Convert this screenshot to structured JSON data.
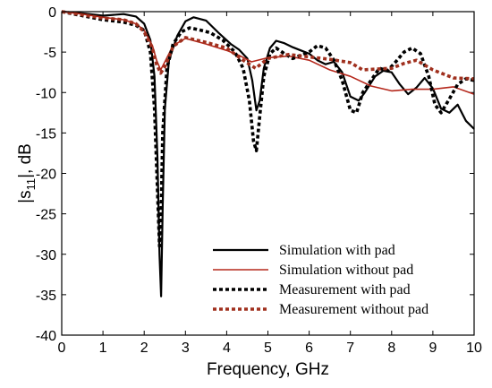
{
  "chart_data": {
    "type": "line",
    "xlabel": "Frequency, GHz",
    "ylabel_main": "|s",
    "ylabel_sub": "11",
    "ylabel_tail": "|, dB",
    "xlim": [
      0,
      10
    ],
    "ylim": [
      -40,
      0
    ],
    "xticks": [
      0,
      1,
      2,
      3,
      4,
      5,
      6,
      7,
      8,
      9,
      10
    ],
    "yticks": [
      0,
      -5,
      -10,
      -15,
      -20,
      -25,
      -30,
      -35,
      -40
    ],
    "grid": false,
    "legend_position": "bottom-right",
    "series": [
      {
        "name": "Simulation with pad",
        "color": "#000000",
        "style": "solid",
        "x": [
          0,
          0.5,
          1.0,
          1.5,
          1.8,
          2.0,
          2.15,
          2.25,
          2.32,
          2.37,
          2.41,
          2.45,
          2.5,
          2.6,
          2.8,
          3.0,
          3.2,
          3.5,
          3.8,
          4.1,
          4.3,
          4.5,
          4.62,
          4.72,
          4.8,
          4.9,
          5.05,
          5.2,
          5.4,
          5.6,
          5.8,
          6.0,
          6.2,
          6.4,
          6.6,
          6.8,
          7.0,
          7.2,
          7.35,
          7.6,
          7.8,
          8.0,
          8.2,
          8.4,
          8.6,
          8.8,
          9.0,
          9.2,
          9.4,
          9.6,
          9.8,
          10.0
        ],
        "y": [
          0,
          -0.2,
          -0.5,
          -0.3,
          -0.6,
          -1.5,
          -3.5,
          -8,
          -18,
          -30,
          -35.2,
          -24,
          -12,
          -6,
          -3,
          -1.2,
          -0.7,
          -1.1,
          -2.6,
          -4,
          -4.7,
          -5.8,
          -8.5,
          -12.2,
          -11,
          -7,
          -4.5,
          -3.6,
          -3.9,
          -4.4,
          -4.8,
          -5.2,
          -6,
          -6.5,
          -6.2,
          -7.5,
          -10.5,
          -11,
          -10,
          -8,
          -7.3,
          -7.5,
          -9,
          -10.2,
          -9.4,
          -8.2,
          -9.5,
          -12,
          -12.5,
          -11.5,
          -13.5,
          -14.5
        ]
      },
      {
        "name": "Simulation without pad",
        "color": "#b5281c",
        "style": "solid",
        "x": [
          0,
          0.5,
          1.0,
          1.5,
          1.8,
          2.0,
          2.2,
          2.3,
          2.4,
          2.5,
          2.7,
          3.0,
          3.5,
          4.0,
          4.3,
          4.6,
          5.0,
          5.5,
          6.0,
          6.5,
          7.0,
          7.5,
          8.0,
          8.5,
          9.0,
          9.5,
          10.0
        ],
        "y": [
          0,
          -0.3,
          -0.7,
          -1.0,
          -1.5,
          -2.3,
          -4.2,
          -6.0,
          -7.2,
          -6.2,
          -4.2,
          -3.3,
          -4.0,
          -4.8,
          -5.4,
          -6.2,
          -5.7,
          -5.5,
          -6.0,
          -7.2,
          -8.0,
          -9.2,
          -9.8,
          -9.6,
          -9.6,
          -9.3,
          -10.2
        ]
      },
      {
        "name": "Measurement with pad",
        "color": "#000000",
        "style": "dotted",
        "x": [
          0,
          0.5,
          1.0,
          1.5,
          1.8,
          2.0,
          2.15,
          2.25,
          2.32,
          2.37,
          2.41,
          2.45,
          2.55,
          2.7,
          2.9,
          3.1,
          3.3,
          3.6,
          3.9,
          4.2,
          4.4,
          4.55,
          4.65,
          4.72,
          4.8,
          4.9,
          5.05,
          5.2,
          5.4,
          5.6,
          5.8,
          6.0,
          6.2,
          6.4,
          6.6,
          6.8,
          7.0,
          7.15,
          7.3,
          7.5,
          7.7,
          7.9,
          8.1,
          8.3,
          8.5,
          8.7,
          8.9,
          9.05,
          9.2,
          9.4,
          9.6,
          9.8,
          10.0
        ],
        "y": [
          0,
          -0.5,
          -1.0,
          -1.3,
          -1.7,
          -2.3,
          -5,
          -12,
          -22,
          -29,
          -25,
          -15,
          -7,
          -4,
          -2.5,
          -2.0,
          -2.2,
          -2.6,
          -3.5,
          -5.0,
          -7.0,
          -11,
          -16,
          -17.2,
          -13,
          -8,
          -5.2,
          -4.5,
          -5.2,
          -5.8,
          -5.4,
          -5.0,
          -4.2,
          -4.5,
          -6.0,
          -8.5,
          -12.2,
          -12.5,
          -10,
          -8.5,
          -7.0,
          -7.3,
          -6.2,
          -5.0,
          -4.5,
          -5.2,
          -8,
          -11.5,
          -12.5,
          -10.8,
          -9.0,
          -8.3,
          -8.5
        ]
      },
      {
        "name": "Measurement without pad",
        "color": "#a0301e",
        "style": "dotted",
        "x": [
          0,
          0.5,
          1.0,
          1.5,
          1.8,
          2.0,
          2.2,
          2.3,
          2.4,
          2.5,
          2.7,
          3.0,
          3.5,
          4.0,
          4.4,
          4.7,
          5.0,
          5.5,
          6.0,
          6.5,
          7.0,
          7.3,
          7.6,
          8.0,
          8.3,
          8.6,
          9.0,
          9.5,
          10.0
        ],
        "y": [
          0,
          -0.4,
          -0.8,
          -1.0,
          -1.5,
          -2.5,
          -4.5,
          -6.5,
          -7.6,
          -6.8,
          -4.3,
          -3.2,
          -3.8,
          -4.5,
          -6.0,
          -7.0,
          -5.8,
          -5.3,
          -5.6,
          -5.9,
          -6.3,
          -7.2,
          -7.1,
          -7.0,
          -6.4,
          -6.0,
          -7.2,
          -8.2,
          -8.3
        ]
      }
    ]
  }
}
